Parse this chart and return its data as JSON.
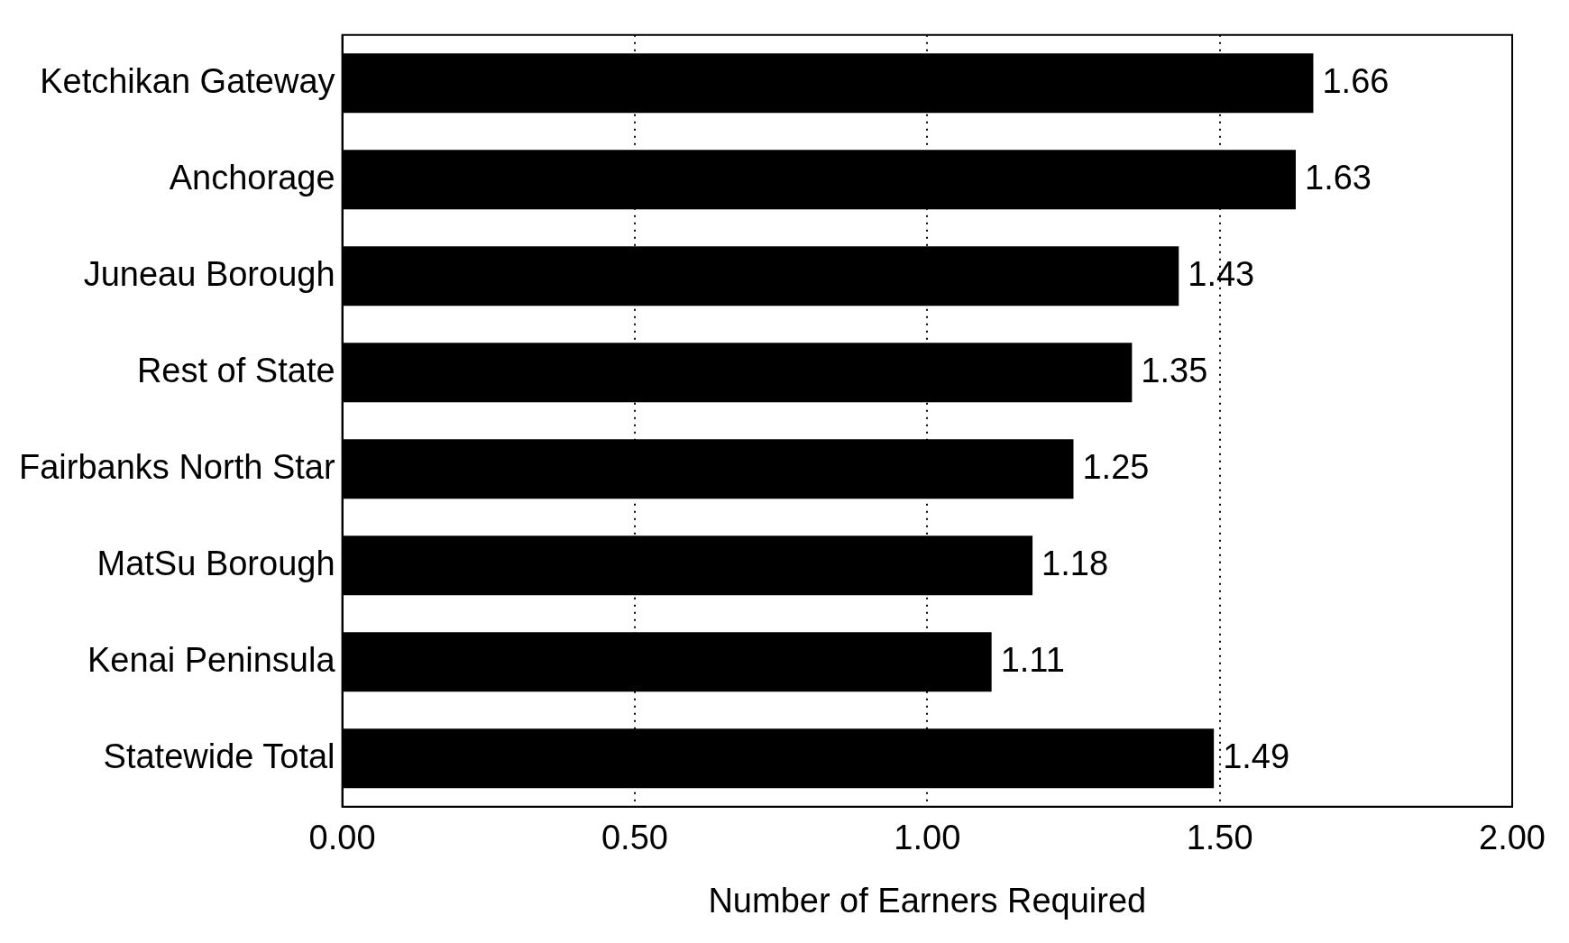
{
  "chart_data": {
    "type": "bar",
    "orientation": "horizontal",
    "xlabel": "Number of Earners Required",
    "categories": [
      "Ketchikan Gateway",
      "Anchorage",
      "Juneau Borough",
      "Rest of State",
      "Fairbanks North Star",
      "MatSu Borough",
      "Kenai Peninsula",
      "Statewide Total"
    ],
    "values": [
      1.66,
      1.63,
      1.43,
      1.35,
      1.25,
      1.18,
      1.11,
      1.49
    ],
    "color": "#000000",
    "xlim": [
      0,
      2
    ],
    "xticks": [
      {
        "value": 0,
        "label": "0.00"
      },
      {
        "value": 0.5,
        "label": "0.50"
      },
      {
        "value": 1,
        "label": "1.00"
      },
      {
        "value": 1.5,
        "label": "1.50"
      },
      {
        "value": 2,
        "label": "2.00"
      }
    ],
    "grid": "x",
    "line_style": "dotted",
    "data_labels": true,
    "legend": false
  }
}
